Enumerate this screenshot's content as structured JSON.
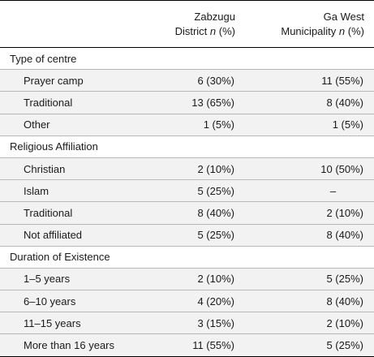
{
  "header": {
    "col1": "",
    "col2_line1": "Zabzugu",
    "col2_line2": "District",
    "col3_line1": "Ga West",
    "col3_line2": "Municipality",
    "n_symbol": "n",
    "pct_suffix": "(%)"
  },
  "sections": [
    {
      "title": "Type of centre",
      "rows": [
        {
          "label": "Prayer camp",
          "zabzugu": "6 (30%)",
          "gawest": "11 (55%)"
        },
        {
          "label": "Traditional",
          "zabzugu": "13 (65%)",
          "gawest": "8 (40%)"
        },
        {
          "label": "Other",
          "zabzugu": "1 (5%)",
          "gawest": "1 (5%)"
        }
      ]
    },
    {
      "title": "Religious Affiliation",
      "rows": [
        {
          "label": "Christian",
          "zabzugu": "2 (10%)",
          "gawest": "10 (50%)"
        },
        {
          "label": "Islam",
          "zabzugu": "5 (25%)",
          "gawest": "–"
        },
        {
          "label": "Traditional",
          "zabzugu": "8 (40%)",
          "gawest": "2 (10%)"
        },
        {
          "label": "Not affiliated",
          "zabzugu": "5 (25%)",
          "gawest": "8 (40%)"
        }
      ]
    },
    {
      "title": "Duration of Existence",
      "rows": [
        {
          "label": "1–5 years",
          "zabzugu": "2 (10%)",
          "gawest": "5 (25%)"
        },
        {
          "label": "6–10 years",
          "zabzugu": "4 (20%)",
          "gawest": "8 (40%)"
        },
        {
          "label": "11–15 years",
          "zabzugu": "3 (15%)",
          "gawest": "2 (10%)"
        },
        {
          "label": "More than 16 years",
          "zabzugu": "11 (55%)",
          "gawest": "5 (25%)"
        }
      ]
    }
  ]
}
